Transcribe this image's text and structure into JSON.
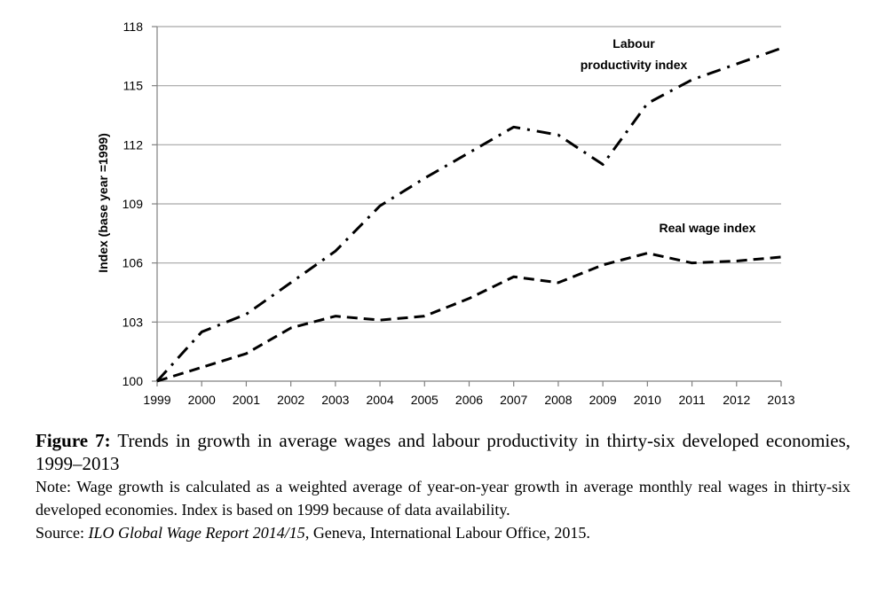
{
  "chart_data": {
    "type": "line",
    "title": "",
    "xlabel": "",
    "ylabel": "Index (base year =1999)",
    "ylim": [
      100,
      118
    ],
    "yticks": [
      100,
      103,
      106,
      109,
      112,
      115,
      118
    ],
    "x": [
      "1999",
      "2000",
      "2001",
      "2002",
      "2003",
      "2004",
      "2005",
      "2006",
      "2007",
      "2008",
      "2009",
      "2010",
      "2011",
      "2012",
      "2013"
    ],
    "grid": true,
    "series": [
      {
        "name": "Labour productivity index",
        "style": "dash-dot",
        "values": [
          100.0,
          102.5,
          103.4,
          105.0,
          106.6,
          108.9,
          110.3,
          111.6,
          112.9,
          112.5,
          111.0,
          114.1,
          115.3,
          116.1,
          116.9
        ]
      },
      {
        "name": "Real wage index",
        "style": "dashed",
        "values": [
          100.0,
          100.7,
          101.4,
          102.7,
          103.3,
          103.1,
          103.3,
          104.2,
          105.3,
          105.0,
          105.9,
          106.5,
          106.0,
          106.1,
          106.3
        ]
      }
    ],
    "annotations": {
      "productivity_line1": "Labour",
      "productivity_line2": "productivity  index",
      "wage": "Real wage index"
    }
  },
  "caption": {
    "figure_label": "Figure 7:",
    "figure_title": " Trends in growth in average wages and labour productivity in thirty-six developed economies, 1999–2013",
    "note": "Note: Wage growth is calculated as a weighted average of year-on-year growth in average monthly real wages in thirty-six developed economies. Index is based on 1999 because of data availability.",
    "source_prefix": "Source: ",
    "source_title": "ILO Global Wage Report 2014/15",
    "source_rest": ", Geneva, International Labour Office, 2015."
  },
  "colors": {
    "line": "#000000",
    "grid": "#a6a6a6",
    "axis": "#808080"
  }
}
